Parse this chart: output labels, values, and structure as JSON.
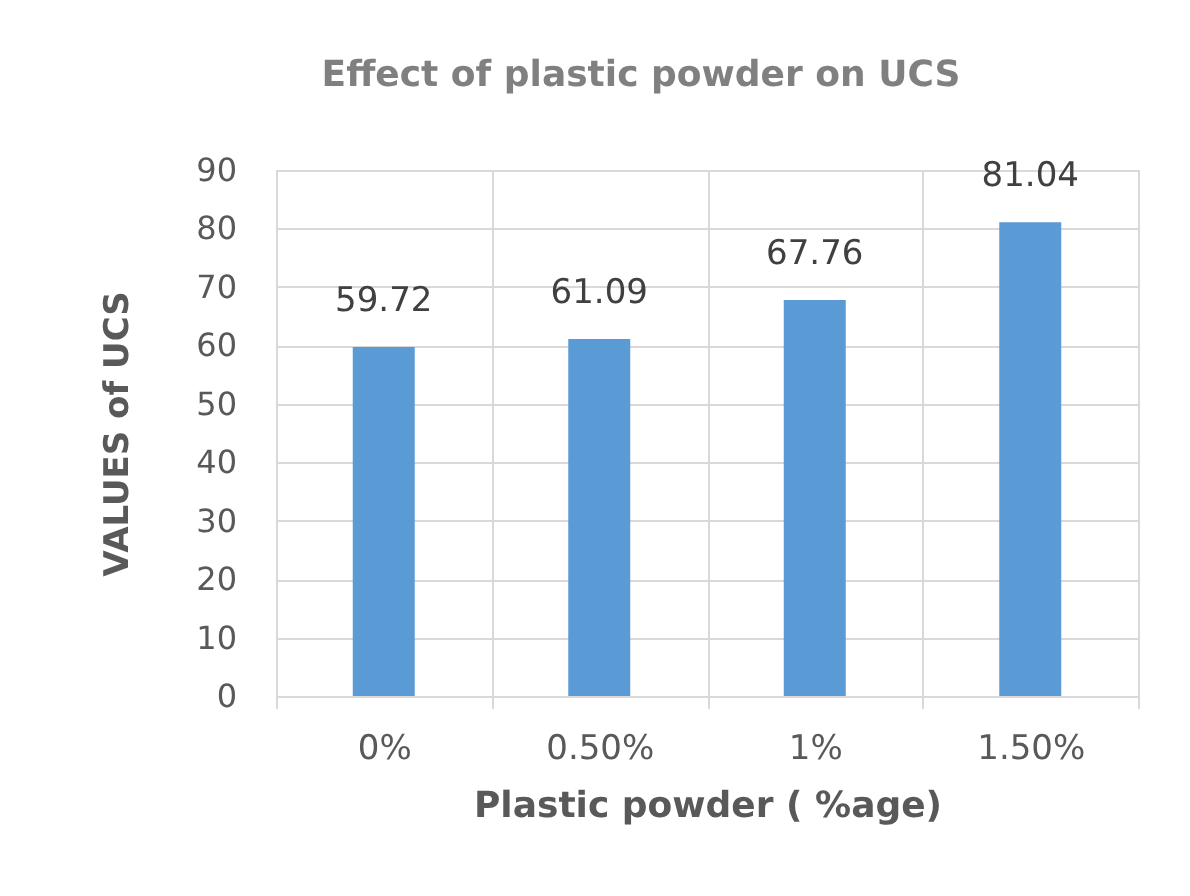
{
  "chart_data": {
    "type": "bar",
    "title": "Effect of plastic powder on  UCS",
    "xlabel": "Plastic powder ( %age)",
    "ylabel": "VALUES of UCS",
    "categories": [
      "0%",
      "0.50%",
      "1%",
      "1.50%"
    ],
    "values": [
      59.72,
      61.09,
      67.76,
      81.04
    ],
    "color": "#5b9bd5",
    "ylim": [
      0,
      90
    ],
    "yticks": [
      0,
      10,
      20,
      30,
      40,
      50,
      60,
      70,
      80,
      90
    ],
    "grid": true,
    "data_labels": true
  }
}
